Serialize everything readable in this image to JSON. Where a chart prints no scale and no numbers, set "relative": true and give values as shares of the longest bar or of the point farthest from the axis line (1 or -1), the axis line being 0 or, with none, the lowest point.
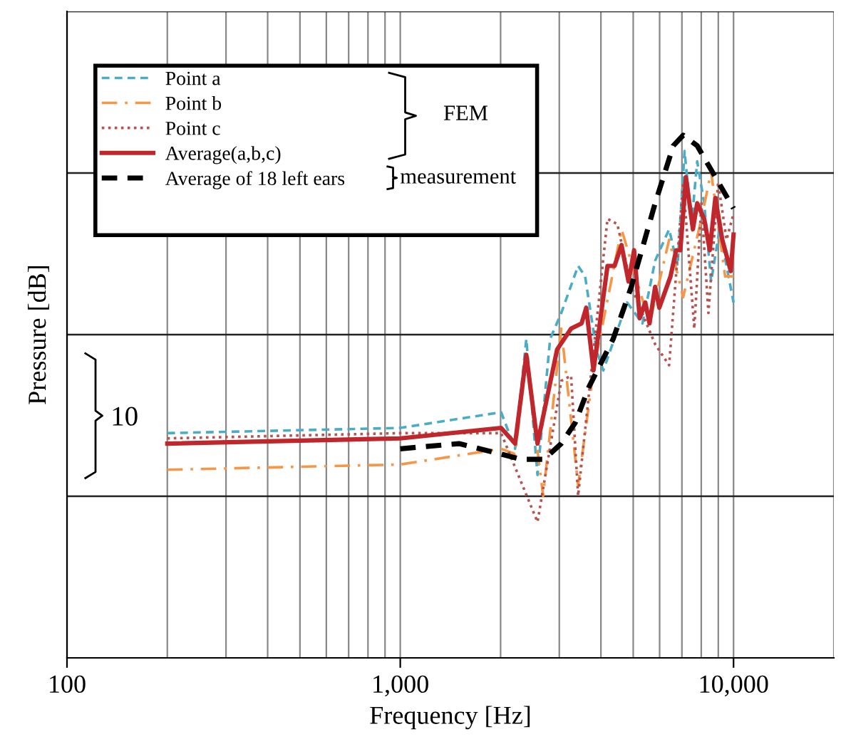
{
  "chart_data": {
    "type": "line",
    "relative": true,
    "xlabel": "Frequency [Hz]",
    "ylabel": "Pressure [dB]",
    "log": "x",
    "grid": true,
    "legend": "top left",
    "marker": "none",
    "xlim": [
      100,
      20000
    ],
    "xticks": [
      {
        "value": 100,
        "label": "100"
      },
      {
        "value": 1000,
        "label": "1,000"
      },
      {
        "value": 10000,
        "label": "10,000"
      }
    ],
    "annotations": [
      "FEM",
      "measurement",
      "10"
    ],
    "series": [
      {
        "name": "Point a",
        "color": "#4bacc6",
        "line_style": "dashed",
        "x": [
          200,
          1000,
          2007,
          2211,
          2389,
          2581,
          2816,
          3042,
          3417,
          3586,
          3874,
          4066,
          4793,
          5331,
          5818,
          6408,
          6791,
          7129,
          7481,
          7779,
          8164,
          8565,
          9078,
          10000
        ],
        "values": [
          0.43,
          0.44,
          0.47,
          0.4,
          0.61,
          0.35,
          0.61,
          0.66,
          0.75,
          0.73,
          0.59,
          0.55,
          0.68,
          0.64,
          0.76,
          0.82,
          0.75,
          0.97,
          0.83,
          0.95,
          0.87,
          0.72,
          0.82,
          0.68
        ]
      },
      {
        "name": "Point b",
        "color": "#f79646",
        "line_style": "dashdot",
        "x": [
          200,
          1000,
          2007,
          2211,
          2389,
          2683,
          3042,
          3417,
          3800,
          4612,
          5596,
          6408,
          7060,
          8007,
          8565,
          9434,
          10000
        ],
        "values": [
          0.36,
          0.37,
          0.4,
          0.39,
          0.57,
          0.31,
          0.63,
          0.33,
          0.55,
          0.82,
          0.64,
          0.8,
          0.69,
          0.84,
          0.93,
          0.73,
          0.73
        ]
      },
      {
        "name": "Point c",
        "color": "#b5534f",
        "line_style": "dotted",
        "x": [
          200,
          1000,
          2007,
          2581,
          3042,
          3255,
          3417,
          4186,
          4480,
          4934,
          5818,
          6408,
          7060,
          7625,
          8007,
          8405,
          8990,
          9528,
          10000
        ],
        "values": [
          0.42,
          0.43,
          0.43,
          0.26,
          0.53,
          0.54,
          0.31,
          0.84,
          0.83,
          0.71,
          0.6,
          0.56,
          0.91,
          0.63,
          0.87,
          0.66,
          0.91,
          0.8,
          0.85
        ]
      },
      {
        "name": "Average(a,b,c)",
        "color": "#c0272d",
        "line_style": "solid",
        "x": [
          200,
          1000,
          2007,
          2211,
          2389,
          2581,
          2955,
          3255,
          3500,
          3614,
          3800,
          4186,
          4395,
          4612,
          4840,
          5030,
          5229,
          5435,
          5596,
          5818,
          5987,
          6471,
          6726,
          6924,
          7198,
          7552,
          7779,
          8164,
          8486,
          8817,
          9254,
          9808,
          10000
        ],
        "values": [
          0.41,
          0.42,
          0.44,
          0.41,
          0.58,
          0.41,
          0.59,
          0.63,
          0.64,
          0.67,
          0.55,
          0.75,
          0.75,
          0.79,
          0.72,
          0.78,
          0.65,
          0.68,
          0.64,
          0.71,
          0.67,
          0.73,
          0.78,
          0.78,
          0.92,
          0.82,
          0.87,
          0.84,
          0.78,
          0.88,
          0.8,
          0.74,
          0.81
        ]
      },
      {
        "name": "Average of 18 left ears",
        "color": "#000000",
        "line_style": "dashed",
        "x": [
          1000,
          1500,
          2007,
          2300,
          2500,
          2700,
          3042,
          3350,
          3692,
          4352,
          4934,
          5818,
          6597,
          7060,
          7779,
          8817,
          10000
        ],
        "values": [
          0.4,
          0.41,
          0.39,
          0.38,
          0.38,
          0.38,
          0.41,
          0.45,
          0.52,
          0.61,
          0.71,
          0.87,
          0.98,
          1.0,
          0.98,
          0.92,
          0.86
        ]
      }
    ]
  }
}
